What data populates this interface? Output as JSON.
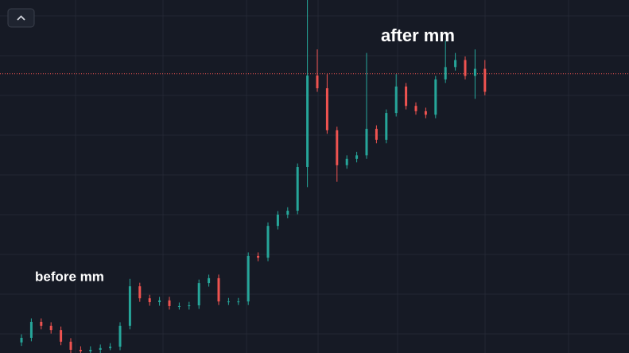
{
  "chart_data": {
    "type": "candlestick",
    "annotations": [
      "before mm",
      "after mm"
    ],
    "open": [
      3.0,
      4.3,
      8.8,
      7.7,
      6.5,
      3.2,
      0.9,
      0.5,
      0.9,
      1.4,
      1.8,
      7.7,
      18.9,
      15.5,
      14.4,
      14.9,
      13.3,
      13.3,
      13.5,
      19.8,
      21.2,
      14.6,
      14.6,
      14.6,
      27.5,
      27.0,
      36.0,
      39.2,
      40.3,
      52.7,
      78.6,
      75.0,
      63.1,
      53.2,
      55.0,
      56.0,
      63.5,
      60.4,
      68.0,
      75.5,
      70.0,
      68.5,
      67.5,
      77.5,
      81.0,
      83.0,
      78.5,
      80.5
    ],
    "high": [
      5.3,
      9.8,
      9.8,
      8.7,
      7.5,
      4.2,
      1.9,
      1.9,
      2.4,
      2.8,
      8.7,
      21.0,
      19.9,
      16.5,
      15.9,
      15.9,
      14.3,
      14.5,
      20.8,
      22.2,
      22.2,
      15.6,
      15.6,
      28.5,
      28.5,
      37.0,
      40.2,
      41.3,
      53.7,
      100,
      86.0,
      79.0,
      64.1,
      56.0,
      57.0,
      85.0,
      64.5,
      69.0,
      79.0,
      76.5,
      71.0,
      69.5,
      78.5,
      88.5,
      85.0,
      84.0,
      86.0,
      83.0
    ],
    "low": [
      2.0,
      3.3,
      6.7,
      5.5,
      2.2,
      0,
      0,
      0,
      0,
      0.8,
      0.8,
      6.7,
      14.5,
      13.4,
      13.4,
      12.3,
      12.3,
      12.3,
      12.5,
      18.8,
      13.6,
      13.6,
      13.6,
      13.6,
      26.0,
      26.0,
      35.0,
      38.2,
      39.3,
      47.0,
      74.0,
      62.1,
      48.5,
      52.2,
      54.0,
      55.0,
      59.4,
      59.4,
      67.0,
      69.0,
      67.5,
      66.5,
      66.5,
      76.5,
      80.0,
      77.5,
      72.0,
      73.0
    ],
    "close": [
      4.3,
      8.8,
      7.7,
      6.5,
      3.2,
      0.9,
      0.5,
      0.9,
      1.4,
      1.8,
      7.7,
      18.9,
      15.5,
      14.4,
      14.9,
      13.3,
      13.3,
      13.5,
      19.8,
      21.2,
      14.6,
      14.6,
      14.6,
      27.5,
      27.0,
      36.0,
      39.2,
      40.3,
      52.7,
      78.6,
      75.0,
      63.1,
      53.2,
      55.0,
      56.0,
      63.5,
      60.4,
      68.0,
      75.5,
      70.0,
      68.5,
      67.5,
      77.5,
      81.0,
      83.0,
      78.5,
      80.5,
      74.0
    ],
    "up_color": "#26a69a",
    "down_color": "#ef5350",
    "price_line": 79.1,
    "price_line_color": "#ef5350",
    "ylim": [
      0,
      100
    ],
    "grid": true
  }
}
